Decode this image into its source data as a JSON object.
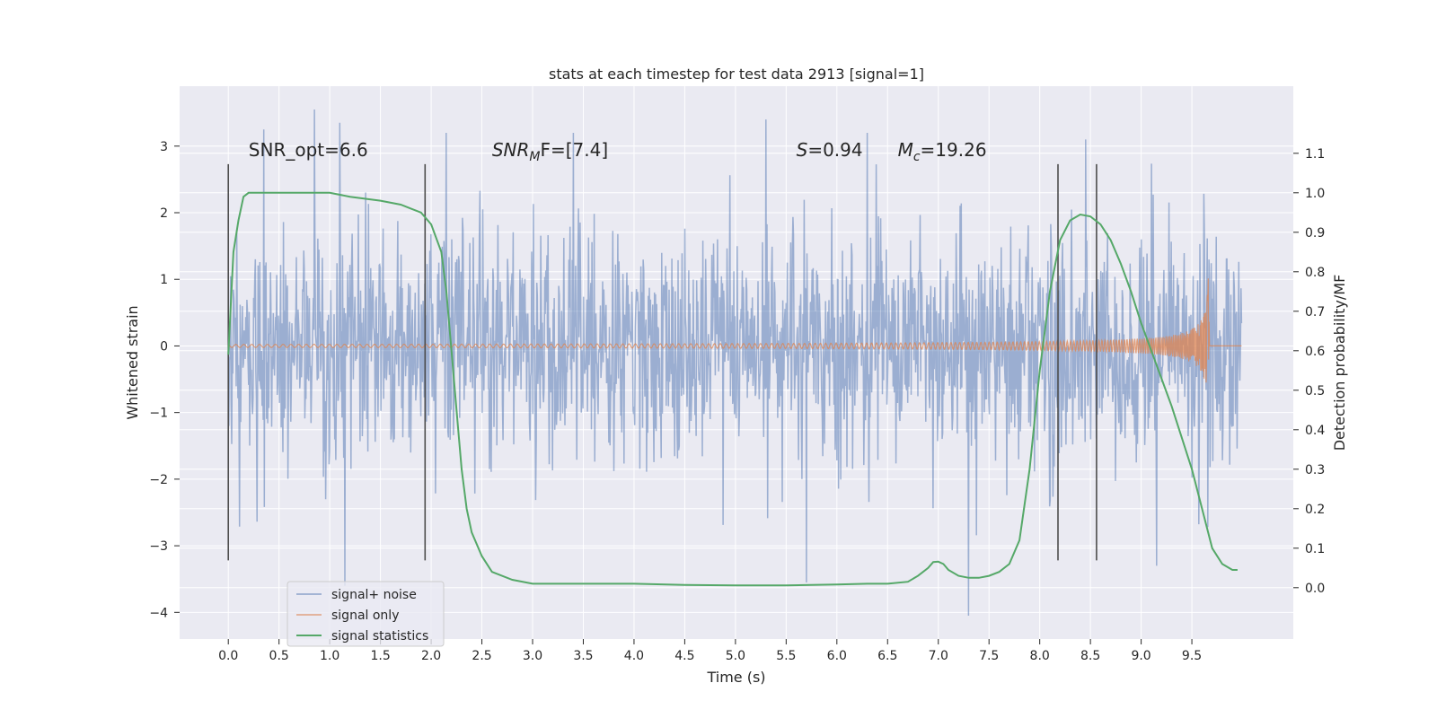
{
  "chart_data": {
    "type": "line",
    "title": "stats at each timestep for test data 2913 [signal=1]",
    "xlabel": "Time (s)",
    "ylabel_left": "Whitened strain",
    "ylabel_right": "Detection probability/MF",
    "xlim": [
      -0.48,
      10.5
    ],
    "ylim_left": [
      -4.4,
      3.9
    ],
    "ylim_right": [
      -0.13,
      1.27
    ],
    "x_ticks": [
      0.0,
      0.5,
      1.0,
      1.5,
      2.0,
      2.5,
      3.0,
      3.5,
      4.0,
      4.5,
      5.0,
      5.5,
      6.0,
      6.5,
      7.0,
      7.5,
      8.0,
      8.5,
      9.0,
      9.5
    ],
    "x_tick_labels": [
      "0.0",
      "0.5",
      "1.0",
      "1.5",
      "2.0",
      "2.5",
      "3.0",
      "3.5",
      "4.0",
      "4.5",
      "5.0",
      "5.5",
      "6.0",
      "6.5",
      "7.0",
      "7.5",
      "8.0",
      "8.5",
      "9.0",
      "9.5"
    ],
    "y_left_ticks": [
      3,
      2,
      1,
      0,
      -1,
      -2,
      -3,
      -4
    ],
    "y_left_tick_labels": [
      "3",
      "2",
      "1",
      "0",
      "−1",
      "−2",
      "−3",
      "−4"
    ],
    "y_right_ticks": [
      1.1,
      1.0,
      0.9,
      0.8,
      0.7,
      0.6,
      0.5,
      0.4,
      0.3,
      0.2,
      0.1,
      0.0
    ],
    "y_right_tick_labels": [
      "1.1",
      "1.0",
      "0.9",
      "0.8",
      "0.7",
      "0.6",
      "0.5",
      "0.4",
      "0.3",
      "0.2",
      "0.1",
      "0.0"
    ],
    "grid": true,
    "legend_placement": "lower-left",
    "series": [
      {
        "name": "signal+ noise",
        "color": "#4c72b0",
        "axis": "left",
        "x_range": [
          0.0,
          9.99
        ],
        "envelope_typical": [
          -1.5,
          1.5
        ],
        "peaks": [
          {
            "x": 0.85,
            "y": 3.55
          },
          {
            "x": 1.1,
            "y": 3.35
          },
          {
            "x": 5.3,
            "y": 3.4
          },
          {
            "x": 1.15,
            "y": -3.6
          },
          {
            "x": 7.3,
            "y": -4.05
          },
          {
            "x": 5.7,
            "y": -3.55
          },
          {
            "x": 9.15,
            "y": -3.3
          },
          {
            "x": 0.35,
            "y": 3.25
          },
          {
            "x": 2.15,
            "y": 3.2
          },
          {
            "x": 3.4,
            "y": 3.2
          },
          {
            "x": 6.3,
            "y": 3.2
          },
          {
            "x": 8.45,
            "y": 3.1
          }
        ]
      },
      {
        "name": "signal only",
        "color": "#dd8452",
        "axis": "left",
        "type": "chirp",
        "x_start": 0.0,
        "merger_x": 9.67,
        "x_end": 9.99,
        "peak_amplitude": 1.2
      },
      {
        "name": "signal statistics",
        "color": "#55a868",
        "axis": "right",
        "x": [
          0.0,
          0.05,
          0.1,
          0.15,
          0.2,
          0.3,
          0.5,
          0.8,
          1.0,
          1.2,
          1.5,
          1.7,
          1.8,
          1.9,
          2.0,
          2.1,
          2.15,
          2.2,
          2.25,
          2.3,
          2.35,
          2.4,
          2.5,
          2.6,
          2.8,
          3.0,
          3.5,
          4.0,
          4.5,
          5.0,
          5.5,
          6.0,
          6.3,
          6.5,
          6.7,
          6.8,
          6.9,
          6.95,
          7.0,
          7.05,
          7.1,
          7.2,
          7.3,
          7.4,
          7.5,
          7.6,
          7.7,
          7.8,
          7.9,
          8.0,
          8.1,
          8.2,
          8.3,
          8.4,
          8.5,
          8.6,
          8.7,
          8.8,
          8.9,
          9.0,
          9.1,
          9.2,
          9.3,
          9.4,
          9.5,
          9.6,
          9.7,
          9.8,
          9.9,
          9.95
        ],
        "y": [
          0.59,
          0.85,
          0.93,
          0.99,
          1.0,
          1.0,
          1.0,
          1.0,
          1.0,
          0.99,
          0.98,
          0.97,
          0.96,
          0.95,
          0.92,
          0.85,
          0.75,
          0.6,
          0.45,
          0.3,
          0.2,
          0.14,
          0.08,
          0.04,
          0.02,
          0.01,
          0.01,
          0.01,
          0.007,
          0.006,
          0.006,
          0.008,
          0.01,
          0.01,
          0.015,
          0.03,
          0.05,
          0.065,
          0.066,
          0.06,
          0.045,
          0.03,
          0.025,
          0.025,
          0.03,
          0.04,
          0.06,
          0.12,
          0.3,
          0.55,
          0.75,
          0.88,
          0.93,
          0.945,
          0.94,
          0.92,
          0.88,
          0.82,
          0.75,
          0.67,
          0.6,
          0.53,
          0.46,
          0.38,
          0.3,
          0.2,
          0.1,
          0.06,
          0.045,
          0.045
        ]
      }
    ],
    "vertical_lines": [
      {
        "x": 0.0,
        "y_range": [
          -3.22,
          2.73
        ]
      },
      {
        "x": 1.94,
        "y_range": [
          -3.22,
          2.73
        ]
      },
      {
        "x": 8.18,
        "y_range": [
          -3.22,
          2.73
        ]
      },
      {
        "x": 8.56,
        "y_range": [
          -3.22,
          2.73
        ]
      }
    ],
    "annotations": [
      {
        "text": "SNR_opt=6.6",
        "x": 0.2,
        "y": 2.85,
        "style": "normal"
      },
      {
        "text": "SNR",
        "sub": "M",
        "tail": "F=[7.4]",
        "x": 2.6,
        "y": 2.85,
        "style": "italic-subscript"
      },
      {
        "text": "S",
        "tail": "=0.94",
        "x": 5.6,
        "y": 2.85,
        "style": "italic"
      },
      {
        "text": "M",
        "sub": "c",
        "tail": "=19.26",
        "x": 6.6,
        "y": 2.85,
        "style": "italic-subscript"
      }
    ],
    "colors": {
      "plot_bg": "#eaeaf2",
      "grid": "#ffffff",
      "vline": "#4d4d4d"
    }
  }
}
